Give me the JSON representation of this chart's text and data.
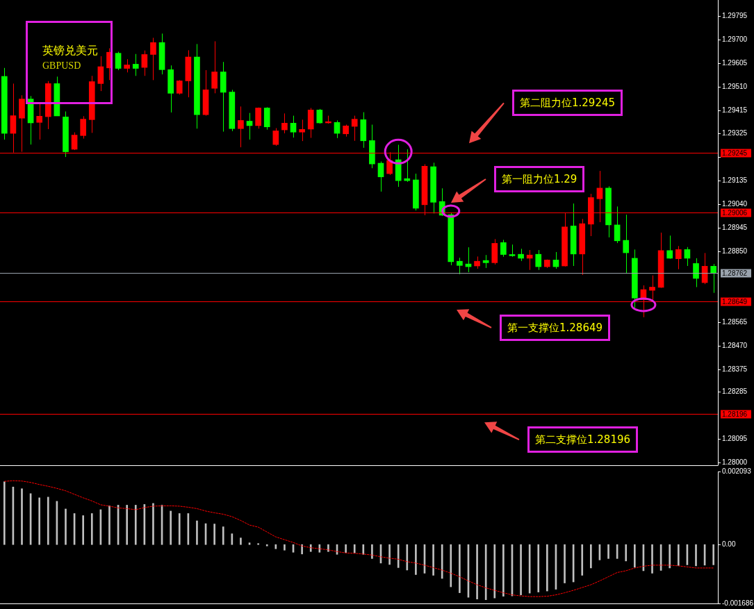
{
  "chart_data": [
    {
      "type": "candlestick",
      "title": "英镑兑美元",
      "subtitle": "GBPUSD",
      "tick_labels": "y",
      "categories": [
        null,
        null,
        null,
        null,
        null,
        null,
        null,
        null,
        null,
        null,
        null,
        null,
        null,
        null,
        null,
        null,
        null,
        null,
        null,
        null,
        null,
        null,
        null,
        null,
        null,
        null,
        null,
        null,
        null,
        null,
        null,
        null,
        null,
        null,
        null,
        null,
        null,
        null,
        null,
        null,
        null,
        null,
        null,
        null,
        null,
        null,
        null,
        null,
        null,
        null,
        null,
        null,
        null,
        null,
        null,
        null,
        null,
        null,
        null,
        null,
        null,
        null,
        null,
        null,
        null,
        null,
        null,
        null,
        null,
        null,
        null,
        null,
        null,
        null,
        null,
        null,
        null,
        null,
        null,
        null,
        null,
        null
      ],
      "ohlc": [
        [
          1.29553,
          1.29587,
          1.29299,
          1.29324
        ],
        [
          1.29324,
          1.29524,
          1.29247,
          1.29395
        ],
        [
          1.29385,
          1.29477,
          1.2925,
          1.29462
        ],
        [
          1.29462,
          1.29474,
          1.29279,
          1.29366
        ],
        [
          1.29368,
          1.29443,
          1.29299,
          1.29393
        ],
        [
          1.29391,
          1.29534,
          1.29341,
          1.29524
        ],
        [
          1.29524,
          1.29552,
          1.29394,
          1.29394
        ],
        [
          1.2939,
          1.29412,
          1.29229,
          1.2925
        ],
        [
          1.2926,
          1.29328,
          1.29257,
          1.29317
        ],
        [
          1.29315,
          1.29393,
          1.29303,
          1.29381
        ],
        [
          1.29379,
          1.29555,
          1.29326,
          1.29532
        ],
        [
          1.29524,
          1.29634,
          1.29494,
          1.29592
        ],
        [
          1.29587,
          1.29666,
          1.29538,
          1.2965
        ],
        [
          1.29646,
          1.29652,
          1.29578,
          1.29585
        ],
        [
          1.29585,
          1.29622,
          1.29569,
          1.29599
        ],
        [
          1.29602,
          1.29643,
          1.29555,
          1.29585
        ],
        [
          1.29589,
          1.29657,
          1.29555,
          1.29641
        ],
        [
          1.29641,
          1.29708,
          1.29538,
          1.29689
        ],
        [
          1.29689,
          1.29725,
          1.29561,
          1.2958
        ],
        [
          1.2958,
          1.29597,
          1.29408,
          1.29485
        ],
        [
          1.29485,
          1.29538,
          1.2948,
          1.29535
        ],
        [
          1.29535,
          1.29658,
          1.29469,
          1.29631
        ],
        [
          1.29631,
          1.29683,
          1.29343,
          1.29399
        ],
        [
          1.29399,
          1.29578,
          1.29395,
          1.29499
        ],
        [
          1.29505,
          1.29694,
          1.29485,
          1.29571
        ],
        [
          1.29571,
          1.29611,
          1.29331,
          1.29489
        ],
        [
          1.2949,
          1.29499,
          1.29333,
          1.29343
        ],
        [
          1.29343,
          1.29432,
          1.29268,
          1.29376
        ],
        [
          1.29373,
          1.29406,
          1.29299,
          1.29355
        ],
        [
          1.29355,
          1.29428,
          1.29343,
          1.29426
        ],
        [
          1.29426,
          1.29429,
          1.29339,
          1.2935
        ],
        [
          1.29279,
          1.29345,
          1.29274,
          1.29334
        ],
        [
          1.29338,
          1.29404,
          1.29324,
          1.29365
        ],
        [
          1.29365,
          1.29395,
          1.29307,
          1.29329
        ],
        [
          1.29329,
          1.29379,
          1.29293,
          1.2934
        ],
        [
          1.29341,
          1.29426,
          1.29306,
          1.29418
        ],
        [
          1.29418,
          1.29422,
          1.29363,
          1.29366
        ],
        [
          1.29366,
          1.29395,
          1.29363,
          1.29371
        ],
        [
          1.29368,
          1.29376,
          1.29305,
          1.29324
        ],
        [
          1.29322,
          1.29359,
          1.29311,
          1.29354
        ],
        [
          1.29352,
          1.29395,
          1.29294,
          1.29381
        ],
        [
          1.29379,
          1.29409,
          1.29266,
          1.29294
        ],
        [
          1.29295,
          1.29359,
          1.29184,
          1.29201
        ],
        [
          1.29204,
          1.29211,
          1.2909,
          1.29149
        ],
        [
          1.29162,
          1.29248,
          1.29157,
          1.29215
        ],
        [
          1.29218,
          1.29278,
          1.29109,
          1.29134
        ],
        [
          1.29142,
          1.2926,
          1.29129,
          1.29134
        ],
        [
          1.29137,
          1.29162,
          1.29014,
          1.29023
        ],
        [
          1.29037,
          1.292,
          1.28995,
          1.29192
        ],
        [
          1.2919,
          1.29206,
          1.29002,
          1.29047
        ],
        [
          1.2905,
          1.29103,
          1.28992,
          1.28995
        ],
        [
          1.28997,
          1.29006,
          1.28794,
          1.28808
        ],
        [
          1.2881,
          1.28824,
          1.28758,
          1.28793
        ],
        [
          1.28799,
          1.28866,
          1.28766,
          1.28788
        ],
        [
          1.28791,
          1.28829,
          1.2878,
          1.2881
        ],
        [
          1.28813,
          1.28835,
          1.28783,
          1.28804
        ],
        [
          1.28804,
          1.28899,
          1.28797,
          1.28882
        ],
        [
          1.28885,
          1.28896,
          1.28828,
          1.28837
        ],
        [
          1.28837,
          1.28877,
          1.28828,
          1.28832
        ],
        [
          1.28838,
          1.2886,
          1.28811,
          1.28822
        ],
        [
          1.28822,
          1.28855,
          1.28775,
          1.28835
        ],
        [
          1.28838,
          1.28855,
          1.28775,
          1.28788
        ],
        [
          1.28788,
          1.28817,
          1.28783,
          1.28815
        ],
        [
          1.28815,
          1.28847,
          1.2878,
          1.28788
        ],
        [
          1.28791,
          1.29003,
          1.28789,
          1.28948
        ],
        [
          1.28952,
          1.29042,
          1.28791,
          1.28839
        ],
        [
          1.28839,
          1.2898,
          1.28755,
          1.28961
        ],
        [
          1.28959,
          1.29081,
          1.28911,
          1.29066
        ],
        [
          1.29061,
          1.29173,
          1.28967,
          1.29104
        ],
        [
          1.29104,
          1.29111,
          1.28906,
          1.28956
        ],
        [
          1.28956,
          1.2903,
          1.28883,
          1.28892
        ],
        [
          1.28894,
          1.28997,
          1.2876,
          1.28844
        ],
        [
          1.28822,
          1.28857,
          1.28615,
          1.28662
        ],
        [
          1.28656,
          1.28713,
          1.28585,
          1.28696
        ],
        [
          1.28693,
          1.28753,
          1.28652,
          1.28706
        ],
        [
          1.28705,
          1.28925,
          1.28703,
          1.28853
        ],
        [
          1.28853,
          1.28913,
          1.2882,
          1.28822
        ],
        [
          1.2882,
          1.28871,
          1.28778,
          1.28857
        ],
        [
          1.28857,
          1.28867,
          1.28791,
          1.28822
        ],
        [
          1.28801,
          1.28822,
          1.28706,
          1.28741
        ],
        [
          1.28724,
          1.28843,
          1.28718,
          1.2879
        ],
        [
          1.2879,
          1.28799,
          1.28683,
          1.28762
        ]
      ],
      "colors": [
        "#00ff00",
        "#ff0000",
        "#ff0000",
        "#00ff00",
        "#ff0000",
        "#ff0000",
        "#00ff00",
        "#00ff00",
        "#ff0000",
        "#ff0000",
        "#ff0000",
        "#ff0000",
        "#ff0000",
        "#00ff00",
        "#ff0000",
        "#00ff00",
        "#ff0000",
        "#ff0000",
        "#00ff00",
        "#00ff00",
        "#ff0000",
        "#ff0000",
        "#00ff00",
        "#ff0000",
        "#ff0000",
        "#00ff00",
        "#00ff00",
        "#ff0000",
        "#00ff00",
        "#ff0000",
        "#00ff00",
        "#ff0000",
        "#ff0000",
        "#00ff00",
        "#ff0000",
        "#ff0000",
        "#00ff00",
        "#ff0000",
        "#00ff00",
        "#ff0000",
        "#ff0000",
        "#00ff00",
        "#00ff00",
        "#00ff00",
        "#ff0000",
        "#00ff00",
        "#00ff00",
        "#00ff00",
        "#ff0000",
        "#00ff00",
        "#00ff00",
        "#00ff00",
        "#00ff00",
        "#00ff00",
        "#ff0000",
        "#00ff00",
        "#ff0000",
        "#00ff00",
        "#00ff00",
        "#00ff00",
        "#ff0000",
        "#00ff00",
        "#ff0000",
        "#00ff00",
        "#ff0000",
        "#00ff00",
        "#ff0000",
        "#ff0000",
        "#ff0000",
        "#00ff00",
        "#00ff00",
        "#00ff00",
        "#00ff00",
        "#ff0000",
        "#ff0000",
        "#ff0000",
        "#00ff00",
        "#ff0000",
        "#00ff00",
        "#00ff00",
        "#ff0000",
        "#00ff00"
      ],
      "ylim": [
        1.2799,
        1.2986
      ],
      "yticks": [
        1.29795,
        {
          "value": 1.297,
          "label": "1.29700"
        },
        1.29605,
        {
          "value": 1.2951,
          "label": "1.29510"
        },
        1.29415,
        1.29325,
        {
          "value": 1.2923,
          "label": null
        },
        1.29135,
        {
          "value": 1.2904,
          "label": "1.29040"
        },
        1.28945,
        {
          "value": 1.2885,
          "label": "1.28850"
        },
        1.28565,
        {
          "value": 1.2847,
          "label": "1.28470"
        },
        1.28375,
        1.28285,
        1.28095,
        {
          "value": 1.28,
          "label": "1.28000"
        }
      ],
      "ref_lines": [
        {
          "axis": "y",
          "value": 1.29245,
          "label": "1.29245",
          "color": "#ff0000"
        },
        {
          "axis": "y",
          "value": 1.29006,
          "label": "1.29006",
          "color": "#ff0000"
        },
        {
          "axis": "y",
          "value": 1.28762,
          "label": "1.28762",
          "color": "#9aa3ad"
        },
        {
          "axis": "y",
          "value": 1.28649,
          "label": "1.28649",
          "color": "#ff0000"
        },
        {
          "axis": "y",
          "value": 1.28196,
          "label": "1.28196",
          "color": "#ff0000"
        }
      ],
      "annotations": [
        "第二阻力位1.29245",
        "第一阻力位1.29",
        "第一支撑位1.28649",
        "第二支撑位1.28196"
      ]
    },
    {
      "type": "bar",
      "tick_labels": "y",
      "categories": [
        null,
        null,
        null,
        null,
        null,
        null,
        null,
        null,
        null,
        null,
        null,
        null,
        null,
        null,
        null,
        null,
        null,
        null,
        null,
        null,
        null,
        null,
        null,
        null,
        null,
        null,
        null,
        null,
        null,
        null,
        null,
        null,
        null,
        null,
        null,
        null,
        null,
        null,
        null,
        null,
        null,
        null,
        null,
        null,
        null,
        null,
        null,
        null,
        null,
        null,
        null,
        null,
        null,
        null,
        null,
        null,
        null,
        null,
        null,
        null,
        null,
        null,
        null,
        null,
        null,
        null,
        null,
        null,
        null,
        null,
        null,
        null,
        null,
        null,
        null,
        null,
        null,
        null,
        null,
        null,
        null,
        null
      ],
      "ylim": [
        -0.001686,
        0.002093
      ],
      "yticks": [
        0.002093,
        {
          "value": 0,
          "label": "0.00"
        },
        -0.001686
      ],
      "series": [
        {
          "type": "bar",
          "color": "#c0c0c0",
          "values": [
            0.0018,
            0.00165,
            0.0016,
            0.00146,
            0.00134,
            0.00136,
            0.00124,
            0.00102,
            0.00089,
            0.00083,
            0.00089,
            0.001,
            0.00111,
            0.00113,
            0.00113,
            0.00113,
            0.00115,
            0.00118,
            0.00113,
            0.00096,
            0.00089,
            0.00089,
            0.00068,
            0.0006,
            0.00059,
            0.00051,
            0.00031,
            0.00019,
            5e-05,
            3e-05,
            -4e-05,
            -0.00012,
            -0.00016,
            -0.00022,
            -0.00027,
            -0.0002,
            -0.00022,
            -0.0002,
            -0.00028,
            -0.00023,
            -0.00024,
            -0.00028,
            -0.0004,
            -0.00053,
            -0.00057,
            -0.00066,
            -0.00073,
            -0.00086,
            -0.00082,
            -0.00088,
            -0.00097,
            -0.00121,
            -0.00138,
            -0.00151,
            -0.00156,
            -0.00158,
            -0.00153,
            -0.00148,
            -0.00147,
            -0.00144,
            -0.00139,
            -0.00136,
            -0.00133,
            -0.00128,
            -0.0011,
            -0.00107,
            -0.00088,
            -0.00067,
            -0.00044,
            -0.0004,
            -0.0004,
            -0.00047,
            -0.00065,
            -0.00075,
            -0.00082,
            -0.00074,
            -0.00067,
            -0.0006,
            -0.00058,
            -0.00061,
            -0.00059,
            -0.00058
          ]
        },
        {
          "type": "line",
          "color": "#ff0000",
          "line_style": "dashed",
          "marker": "none",
          "values": [
            0.00181,
            0.00183,
            0.00182,
            0.00178,
            0.00172,
            0.00167,
            0.00161,
            0.00154,
            0.00144,
            0.00134,
            0.00125,
            0.00114,
            0.0011,
            0.00105,
            0.00103,
            0.001,
            0.00106,
            0.0011,
            0.00111,
            0.00111,
            0.0011,
            0.00107,
            0.00103,
            0.00096,
            0.00091,
            0.00087,
            0.0008,
            0.00069,
            0.00056,
            0.0005,
            0.00036,
            0.00022,
            0.00014,
            6e-05,
            -4e-05,
            -9e-05,
            -0.00012,
            -0.00015,
            -0.0002,
            -0.00024,
            -0.00025,
            -0.00027,
            -0.0003,
            -0.00035,
            -0.00039,
            -0.00042,
            -0.00049,
            -0.00053,
            -0.00059,
            -0.00066,
            -0.00073,
            -0.00082,
            -0.00092,
            -0.00104,
            -0.00115,
            -0.00124,
            -0.00131,
            -0.00138,
            -0.00144,
            -0.00147,
            -0.00149,
            -0.00149,
            -0.00148,
            -0.00144,
            -0.00138,
            -0.00131,
            -0.00123,
            -0.00115,
            -0.00104,
            -0.00092,
            -0.0008,
            -0.00075,
            -0.00067,
            -0.00062,
            -0.00059,
            -0.00059,
            -0.00059,
            -0.00061,
            -0.00064,
            -0.00067,
            -0.00067,
            -0.00067
          ]
        }
      ]
    }
  ]
}
